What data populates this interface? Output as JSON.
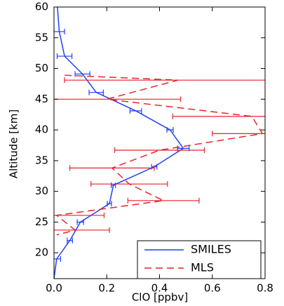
{
  "chart_data": {
    "type": "line",
    "xlabel": "ClO [ppbv]",
    "ylabel": "Altitude [km]",
    "xlim": [
      0,
      0.8
    ],
    "ylim": [
      15.8,
      60
    ],
    "xticks": [
      {
        "value": 0,
        "label": "0.0"
      },
      {
        "value": 0.2,
        "label": "0.2"
      },
      {
        "value": 0.4,
        "label": "0.4"
      },
      {
        "value": 0.6,
        "label": "0.6"
      },
      {
        "value": 0.8,
        "label": "0.8"
      }
    ],
    "yticks": [
      20,
      25,
      30,
      35,
      40,
      45,
      50,
      55,
      60
    ],
    "legend": "lower right",
    "series": [
      {
        "name": "SMILES",
        "color": "#1f3fff",
        "dash": false,
        "x": [
          0.013,
          0.02,
          0.04,
          0.108,
          0.16,
          0.31,
          0.44,
          0.49,
          0.38,
          0.225,
          0.21,
          0.1,
          0.06,
          0.01,
          0.0
        ],
        "y": [
          60,
          56,
          52,
          49.1,
          46.1,
          43.1,
          40,
          37,
          34,
          31,
          28,
          25,
          22,
          19,
          15.8
        ],
        "errors": [
          null,
          0.02,
          0.028,
          0.028,
          0.027,
          0.022,
          0.012,
          0.022,
          0.01,
          0.008,
          0.008,
          0.012,
          0.01,
          0.015,
          null
        ]
      },
      {
        "name": "MLS",
        "color": "#e8232a",
        "dash": true,
        "x": [
          0.04,
          0.47,
          0.2,
          0.75,
          0.79,
          0.4,
          0.22,
          0.285,
          0.415,
          0.01,
          0.08,
          0.01
        ],
        "y": [
          48.9,
          48.1,
          45,
          42.2,
          39.4,
          36.7,
          33.8,
          31.2,
          28.5,
          26.1,
          23.7,
          22.9
        ],
        "errors": [
          null,
          0.43,
          0.28,
          0.3,
          0.19,
          0.17,
          0.16,
          0.145,
          0.135,
          0.18,
          0.13,
          null
        ]
      }
    ]
  }
}
